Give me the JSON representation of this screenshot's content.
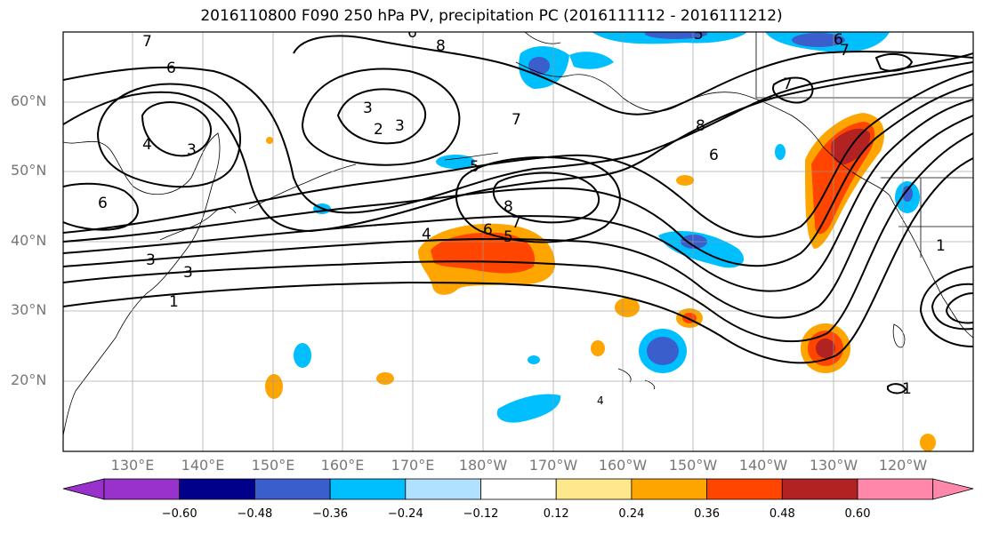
{
  "title": "2016110800 F090 250 hPa PV, precipitation PC (2016111112 - 2016111212)",
  "lat_labels": [
    "60°N",
    "50°N",
    "40°N",
    "30°N",
    "20°N"
  ],
  "lon_labels": [
    "130°E",
    "140°E",
    "150°E",
    "160°E",
    "170°E",
    "180°W",
    "170°W",
    "160°W",
    "150°W",
    "140°W",
    "130°W",
    "120°W"
  ],
  "colorbar": {
    "ticks": [
      "−0.60",
      "−0.48",
      "−0.36",
      "−0.24",
      "−0.12",
      "0.12",
      "0.24",
      "0.36",
      "0.48",
      "0.60"
    ],
    "colors": [
      "#9932cc",
      "#00008b",
      "#3a5fcd",
      "#00bfff",
      "#b0e2ff",
      "#ffffff",
      "#ffe88c",
      "#ffa500",
      "#ff4500",
      "#b22222",
      "#ff88aa"
    ]
  },
  "contour_labels": [
    "7",
    "6",
    "4",
    "3",
    "6",
    "3",
    "2",
    "3",
    "8",
    "6",
    "7",
    "5",
    "8",
    "6",
    "7",
    "8",
    "7",
    "6",
    "5",
    "4",
    "3",
    "3",
    "1",
    "5",
    "6",
    "7",
    "1",
    "1",
    "4"
  ]
}
